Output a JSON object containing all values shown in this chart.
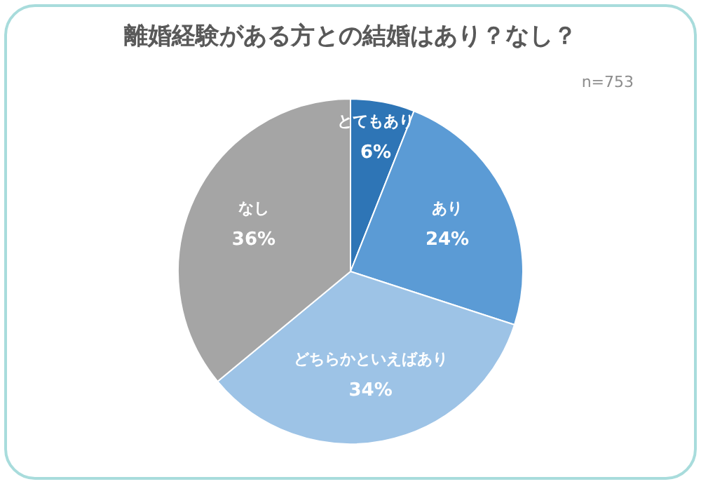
{
  "chart_data": {
    "type": "pie",
    "title": "離婚経験がある方との結婚はあり？なし？",
    "categories": [
      "とてもあり",
      "あり",
      "どちらかといえばあり",
      "なし"
    ],
    "values": [
      6,
      24,
      34,
      36
    ],
    "value_labels": [
      "6%",
      "24%",
      "34%",
      "36%"
    ],
    "colors": [
      "#2e75b6",
      "#5b9bd5",
      "#9dc3e6",
      "#a5a5a5"
    ],
    "annotations": [
      "n=753"
    ],
    "legend": false
  }
}
